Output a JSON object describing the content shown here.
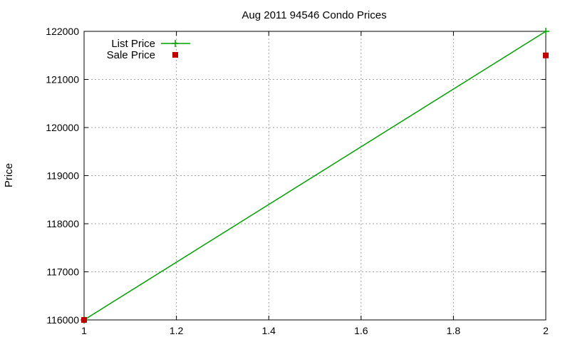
{
  "chart_data": {
    "type": "line",
    "title": "Aug 2011 94546 Condo Prices",
    "xlabel": "",
    "ylabel": "Price",
    "xlim": [
      1,
      2
    ],
    "ylim": [
      116000,
      122000
    ],
    "x_ticks": [
      "1",
      "1.2",
      "1.4",
      "1.6",
      "1.8",
      "2"
    ],
    "y_ticks": [
      "116000",
      "117000",
      "118000",
      "119000",
      "120000",
      "121000",
      "122000"
    ],
    "grid": true,
    "legend_position": "top-left",
    "series": [
      {
        "name": "List Price",
        "style": "linespoints",
        "marker": "plus",
        "color": "#00a000",
        "x": [
          1,
          2
        ],
        "y": [
          116000,
          122000
        ]
      },
      {
        "name": "Sale Price",
        "style": "points",
        "marker": "square",
        "color": "#c00000",
        "x": [
          1,
          2
        ],
        "y": [
          116000,
          121500
        ]
      }
    ]
  }
}
